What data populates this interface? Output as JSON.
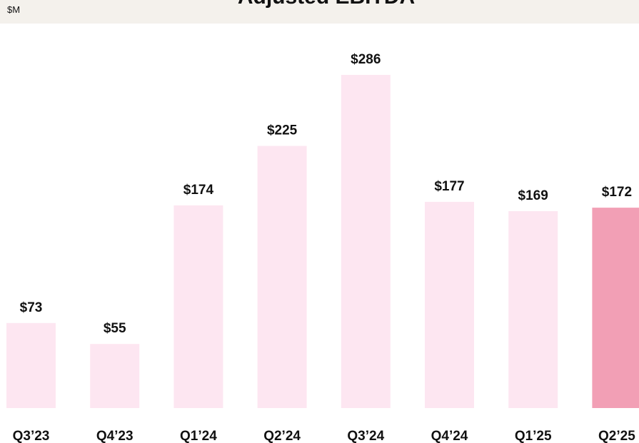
{
  "chart_data": {
    "type": "bar",
    "title": "Adjusted EBITDA",
    "unit_label": "$M",
    "categories": [
      "Q3’23",
      "Q4’23",
      "Q1’24",
      "Q2’24",
      "Q3’24",
      "Q4’24",
      "Q1’25",
      "Q2’25"
    ],
    "values": [
      73,
      55,
      174,
      225,
      286,
      177,
      169,
      172
    ],
    "value_labels": [
      "$73",
      "$55",
      "$174",
      "$225",
      "$286",
      "$177",
      "$169",
      "$172"
    ],
    "colors": [
      "#fde6f1",
      "#fde6f1",
      "#fde6f1",
      "#fde6f1",
      "#fde6f1",
      "#fde6f1",
      "#fde6f1",
      "#f29fb5"
    ]
  }
}
